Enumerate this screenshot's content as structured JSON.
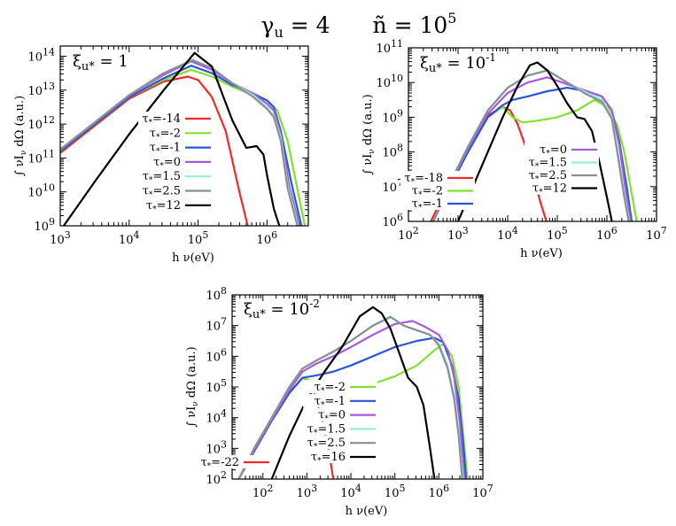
{
  "title": {
    "gamma_sym": "γ",
    "gamma_sub": "u",
    "gamma_eq": " = 4",
    "n_sym": "ñ",
    "n_eq": " = 10",
    "n_exp": "5"
  },
  "colors": {
    "red": "#ee2a2a",
    "green": "#80e12f",
    "blue": "#2a55d9",
    "purple": "#a65ae0",
    "cyan": "#93efd6",
    "gray": "#8a8f95",
    "black": "#000000"
  },
  "chart_data": [
    {
      "type": "line",
      "panel": "top-left",
      "annotation": {
        "sym": "ξ",
        "sub": "u*",
        "eq": " = 1",
        "exp": ""
      },
      "xlabel": "h ν(eV)",
      "ylabel": "∫ νI",
      "ylabel_sub": "ν",
      "ylabel_rest": " dΩ  (a.u.)",
      "xlim": [
        3,
        6.6
      ],
      "ylim": [
        9,
        14.3
      ],
      "xticks": [
        {
          "p": 3,
          "t": "10",
          "e": "3"
        },
        {
          "p": 4,
          "t": "10",
          "e": "4"
        },
        {
          "p": 5,
          "t": "10",
          "e": "5"
        },
        {
          "p": 6,
          "t": "10",
          "e": "6"
        }
      ],
      "yticks": [
        {
          "p": 9,
          "t": "10",
          "e": "9"
        },
        {
          "p": 10,
          "t": "10",
          "e": "10"
        },
        {
          "p": 11,
          "t": "10",
          "e": "11"
        },
        {
          "p": 12,
          "t": "10",
          "e": "12"
        },
        {
          "p": 13,
          "t": "10",
          "e": "13"
        },
        {
          "p": 14,
          "t": "10",
          "e": "14"
        }
      ],
      "series": [
        {
          "name": "τ*=-14",
          "color": "red",
          "x": [
            3.0,
            3.5,
            4.0,
            4.5,
            4.85,
            5.0,
            5.2,
            5.4,
            5.6,
            5.72
          ],
          "y": [
            11.15,
            11.95,
            12.75,
            13.25,
            13.4,
            13.3,
            12.8,
            11.8,
            10.0,
            9.0
          ]
        },
        {
          "name": "τ*=-2",
          "color": "green",
          "x": [
            3.0,
            3.5,
            4.0,
            4.5,
            4.9,
            5.2,
            5.5,
            5.8,
            6.0,
            6.15,
            6.3,
            6.45,
            6.55
          ],
          "y": [
            11.2,
            12.0,
            12.8,
            13.3,
            13.6,
            13.4,
            13.1,
            12.85,
            12.7,
            12.4,
            11.5,
            10.0,
            9.0
          ]
        },
        {
          "name": "τ*=-1",
          "color": "blue",
          "x": [
            3.0,
            3.5,
            4.0,
            4.5,
            4.9,
            5.2,
            5.5,
            5.8,
            6.0,
            6.1,
            6.2,
            6.35,
            6.5
          ],
          "y": [
            11.2,
            12.0,
            12.8,
            13.35,
            13.72,
            13.5,
            13.15,
            12.9,
            12.7,
            12.5,
            11.8,
            10.3,
            9.0
          ]
        },
        {
          "name": "τ*=0",
          "color": "purple",
          "x": [
            3.0,
            3.5,
            4.0,
            4.5,
            4.9,
            5.2,
            5.5,
            5.8,
            6.0,
            6.1,
            6.2,
            6.32,
            6.47
          ],
          "y": [
            11.25,
            12.05,
            12.85,
            13.45,
            13.85,
            13.6,
            13.2,
            12.9,
            12.6,
            12.4,
            11.7,
            10.2,
            9.0
          ]
        },
        {
          "name": "τ*=1.5",
          "color": "cyan",
          "x": [
            3.0,
            3.5,
            4.0,
            4.5,
            4.92,
            5.2,
            5.5,
            5.8,
            6.0,
            6.1,
            6.2,
            6.3,
            6.45
          ],
          "y": [
            11.25,
            12.05,
            12.85,
            13.5,
            13.9,
            13.65,
            13.2,
            12.85,
            12.5,
            12.25,
            11.6,
            10.2,
            9.0
          ]
        },
        {
          "name": "τ*=2.5",
          "color": "gray",
          "x": [
            3.0,
            3.5,
            4.0,
            4.5,
            4.92,
            5.2,
            5.5,
            5.8,
            6.0,
            6.1,
            6.2,
            6.3,
            6.44
          ],
          "y": [
            11.25,
            12.05,
            12.85,
            13.5,
            13.88,
            13.65,
            13.2,
            12.8,
            12.45,
            12.2,
            11.5,
            10.1,
            9.0
          ]
        },
        {
          "name": "τ*=12",
          "color": "black",
          "x": [
            3.05,
            3.5,
            4.0,
            4.5,
            4.95,
            5.2,
            5.5,
            5.7,
            5.85,
            5.95,
            6.0,
            6.1,
            6.18
          ],
          "y": [
            9.0,
            10.3,
            11.7,
            13.0,
            14.1,
            13.7,
            12.1,
            11.3,
            11.35,
            11.1,
            10.5,
            9.5,
            9.0
          ]
        }
      ],
      "legend": {
        "location": "lower-right",
        "order": [
          0,
          1,
          2,
          3,
          4,
          5,
          6
        ]
      }
    },
    {
      "type": "line",
      "panel": "top-right",
      "annotation": {
        "sym": "ξ",
        "sub": "u*",
        "eq": " = 10",
        "exp": "-1"
      },
      "xlabel": "h ν(eV)",
      "ylabel": "∫ νI",
      "ylabel_sub": "ν",
      "ylabel_rest": " dΩ  (a.u.)",
      "xlim": [
        2,
        7
      ],
      "ylim": [
        6,
        11
      ],
      "xticks": [
        {
          "p": 2,
          "t": "10",
          "e": "2"
        },
        {
          "p": 3,
          "t": "10",
          "e": "3"
        },
        {
          "p": 4,
          "t": "10",
          "e": "4"
        },
        {
          "p": 5,
          "t": "10",
          "e": "5"
        },
        {
          "p": 6,
          "t": "10",
          "e": "6"
        },
        {
          "p": 7,
          "t": "10",
          "e": "7"
        }
      ],
      "yticks": [
        {
          "p": 6,
          "t": "10",
          "e": "6"
        },
        {
          "p": 7,
          "t": "10",
          "e": "7"
        },
        {
          "p": 8,
          "t": "10",
          "e": "8"
        },
        {
          "p": 9,
          "t": "10",
          "e": "9"
        },
        {
          "p": 10,
          "t": "10",
          "e": "10"
        },
        {
          "p": 11,
          "t": "10",
          "e": "11"
        }
      ],
      "series": [
        {
          "name": "τ*=-18",
          "color": "red",
          "x": [
            2.45,
            2.8,
            3.2,
            3.6,
            3.9,
            4.05,
            4.2,
            4.35,
            4.5,
            4.65,
            4.78
          ],
          "y": [
            6.0,
            7.0,
            8.1,
            9.05,
            9.3,
            9.2,
            8.8,
            8.2,
            7.4,
            6.6,
            6.0
          ]
        },
        {
          "name": "τ*=-2",
          "color": "green",
          "x": [
            2.5,
            2.8,
            3.2,
            3.6,
            3.9,
            4.1,
            4.3,
            4.6,
            5.0,
            5.4,
            5.75,
            6.0,
            6.2,
            6.35,
            6.5,
            6.6
          ],
          "y": [
            6.0,
            6.9,
            8.0,
            9.0,
            9.3,
            9.0,
            8.85,
            8.9,
            9.0,
            9.2,
            9.5,
            9.3,
            8.8,
            8.0,
            6.8,
            6.0
          ]
        },
        {
          "name": "τ*=-1",
          "color": "blue",
          "x": [
            2.5,
            2.8,
            3.2,
            3.6,
            3.9,
            4.1,
            4.4,
            4.8,
            5.2,
            5.6,
            5.9,
            6.1,
            6.25,
            6.4,
            6.5
          ],
          "y": [
            6.0,
            6.9,
            8.0,
            9.0,
            9.35,
            9.5,
            9.6,
            9.75,
            9.85,
            9.75,
            9.6,
            9.2,
            8.3,
            7.0,
            6.0
          ]
        },
        {
          "name": "τ*=0",
          "color": "purple",
          "x": [
            2.5,
            2.8,
            3.2,
            3.6,
            4.0,
            4.4,
            4.8,
            5.2,
            5.6,
            5.9,
            6.1,
            6.25,
            6.38,
            6.48
          ],
          "y": [
            6.0,
            6.95,
            8.1,
            9.1,
            9.7,
            10.0,
            10.15,
            9.95,
            9.75,
            9.6,
            9.2,
            8.2,
            6.9,
            6.0
          ]
        },
        {
          "name": "τ*=1.5",
          "color": "cyan",
          "x": [
            2.5,
            2.8,
            3.2,
            3.6,
            4.0,
            4.4,
            4.8,
            5.2,
            5.6,
            5.9,
            6.1,
            6.22,
            6.35,
            6.45
          ],
          "y": [
            6.0,
            7.0,
            8.15,
            9.2,
            9.85,
            10.2,
            10.35,
            10.0,
            9.7,
            9.5,
            9.0,
            8.0,
            6.8,
            6.0
          ]
        },
        {
          "name": "τ*=2.5",
          "color": "gray",
          "x": [
            2.5,
            2.8,
            3.2,
            3.6,
            4.0,
            4.4,
            4.8,
            5.2,
            5.6,
            5.9,
            6.1,
            6.22,
            6.35,
            6.44
          ],
          "y": [
            6.0,
            7.0,
            8.15,
            9.2,
            9.85,
            10.2,
            10.35,
            10.0,
            9.65,
            9.45,
            8.95,
            7.9,
            6.7,
            6.0
          ]
        },
        {
          "name": "τ*=12",
          "color": "black",
          "x": [
            3.0,
            3.3,
            3.6,
            3.9,
            4.2,
            4.45,
            4.6,
            4.8,
            5.0,
            5.2,
            5.4,
            5.55,
            5.7,
            5.85,
            6.0,
            6.1
          ],
          "y": [
            6.0,
            7.0,
            8.0,
            9.0,
            9.9,
            10.5,
            10.58,
            10.35,
            9.9,
            9.4,
            9.0,
            8.95,
            8.6,
            7.7,
            6.7,
            6.0
          ]
        }
      ],
      "legend": [
        {
          "location": "bottom-left",
          "order": [
            0,
            1,
            2
          ]
        },
        {
          "location": "center-right",
          "order": [
            3,
            4,
            5,
            6
          ]
        }
      ]
    },
    {
      "type": "line",
      "panel": "bottom",
      "annotation": {
        "sym": "ξ",
        "sub": "u*",
        "eq": " = 10",
        "exp": "-2"
      },
      "xlabel": "h ν(eV)",
      "ylabel": "∫ νI",
      "ylabel_sub": "ν",
      "ylabel_rest": " dΩ  (a.u.)",
      "xlim": [
        1.3,
        7
      ],
      "ylim": [
        2,
        8
      ],
      "xticks": [
        {
          "p": 2,
          "t": "10",
          "e": "2"
        },
        {
          "p": 3,
          "t": "10",
          "e": "3"
        },
        {
          "p": 4,
          "t": "10",
          "e": "4"
        },
        {
          "p": 5,
          "t": "10",
          "e": "5"
        },
        {
          "p": 6,
          "t": "10",
          "e": "6"
        },
        {
          "p": 7,
          "t": "10",
          "e": "7"
        }
      ],
      "yticks": [
        {
          "p": 2,
          "t": "10",
          "e": "2"
        },
        {
          "p": 3,
          "t": "10",
          "e": "3"
        },
        {
          "p": 4,
          "t": "10",
          "e": "4"
        },
        {
          "p": 5,
          "t": "10",
          "e": "5"
        },
        {
          "p": 6,
          "t": "10",
          "e": "6"
        },
        {
          "p": 7,
          "t": "10",
          "e": "7"
        },
        {
          "p": 8,
          "t": "10",
          "e": "8"
        }
      ],
      "series": [
        {
          "name": "τ*=-22",
          "color": "red",
          "x": [
            1.45,
            1.8,
            2.2,
            2.6,
            2.9,
            3.05,
            3.2,
            3.35,
            3.5,
            3.6
          ],
          "y": [
            2.0,
            2.9,
            3.9,
            4.8,
            5.3,
            5.2,
            4.7,
            3.9,
            2.9,
            2.0
          ]
        },
        {
          "name": "τ*=-2",
          "color": "green",
          "x": [
            1.45,
            1.8,
            2.2,
            2.6,
            2.9,
            3.1,
            3.3,
            3.6,
            4.0,
            4.5,
            5.0,
            5.5,
            5.9,
            6.1,
            6.3,
            6.45,
            6.55,
            6.65
          ],
          "y": [
            2.0,
            2.9,
            3.9,
            4.8,
            5.3,
            5.2,
            5.0,
            4.95,
            5.0,
            5.1,
            5.35,
            5.7,
            6.2,
            6.4,
            6.0,
            5.0,
            3.5,
            2.0
          ]
        },
        {
          "name": "τ*=-1",
          "color": "blue",
          "x": [
            1.45,
            1.8,
            2.2,
            2.6,
            2.9,
            3.1,
            3.3,
            3.6,
            4.0,
            4.5,
            5.0,
            5.5,
            5.9,
            6.1,
            6.3,
            6.45,
            6.55,
            6.62
          ],
          "y": [
            2.0,
            2.9,
            3.9,
            4.8,
            5.3,
            5.35,
            5.4,
            5.5,
            5.7,
            6.0,
            6.3,
            6.5,
            6.6,
            6.45,
            5.7,
            4.6,
            3.2,
            2.0
          ]
        },
        {
          "name": "τ*=0",
          "color": "purple",
          "x": [
            1.45,
            1.8,
            2.2,
            2.6,
            2.9,
            3.2,
            3.6,
            4.0,
            4.5,
            5.0,
            5.4,
            5.7,
            6.0,
            6.2,
            6.35,
            6.48,
            6.58
          ],
          "y": [
            2.0,
            2.95,
            3.95,
            4.9,
            5.5,
            5.75,
            6.0,
            6.3,
            6.7,
            7.05,
            7.15,
            6.95,
            6.7,
            6.2,
            5.3,
            3.8,
            2.0
          ]
        },
        {
          "name": "τ*=1.5",
          "color": "cyan",
          "x": [
            1.45,
            1.8,
            2.2,
            2.6,
            2.9,
            3.2,
            3.6,
            4.0,
            4.5,
            4.9,
            5.2,
            5.5,
            5.8,
            6.0,
            6.2,
            6.35,
            6.45,
            6.55
          ],
          "y": [
            2.0,
            3.0,
            4.0,
            5.0,
            5.6,
            5.85,
            6.15,
            6.5,
            7.0,
            7.3,
            7.0,
            6.85,
            6.7,
            6.4,
            5.7,
            4.7,
            3.5,
            2.0
          ]
        },
        {
          "name": "τ*=2.5",
          "color": "gray",
          "x": [
            1.45,
            1.8,
            2.2,
            2.6,
            2.9,
            3.2,
            3.6,
            4.0,
            4.5,
            4.9,
            5.2,
            5.5,
            5.8,
            6.0,
            6.2,
            6.35,
            6.45,
            6.53
          ],
          "y": [
            2.0,
            3.0,
            4.0,
            5.0,
            5.6,
            5.85,
            6.15,
            6.5,
            7.0,
            7.28,
            7.0,
            6.85,
            6.7,
            6.35,
            5.6,
            4.6,
            3.4,
            2.0
          ]
        },
        {
          "name": "τ*=16",
          "color": "black",
          "x": [
            2.2,
            2.6,
            3.0,
            3.4,
            3.8,
            4.2,
            4.5,
            4.7,
            4.9,
            5.1,
            5.3,
            5.5,
            5.65,
            5.8,
            5.9
          ],
          "y": [
            2.0,
            3.4,
            4.6,
            5.5,
            6.3,
            7.3,
            7.6,
            7.4,
            6.9,
            6.1,
            5.3,
            5.0,
            4.4,
            3.0,
            2.0
          ]
        }
      ],
      "legend": [
        {
          "location": "center-right",
          "order": [
            1,
            2,
            3,
            4,
            5,
            6
          ]
        },
        {
          "location": "bottom-left",
          "order": [
            0
          ]
        }
      ]
    }
  ]
}
